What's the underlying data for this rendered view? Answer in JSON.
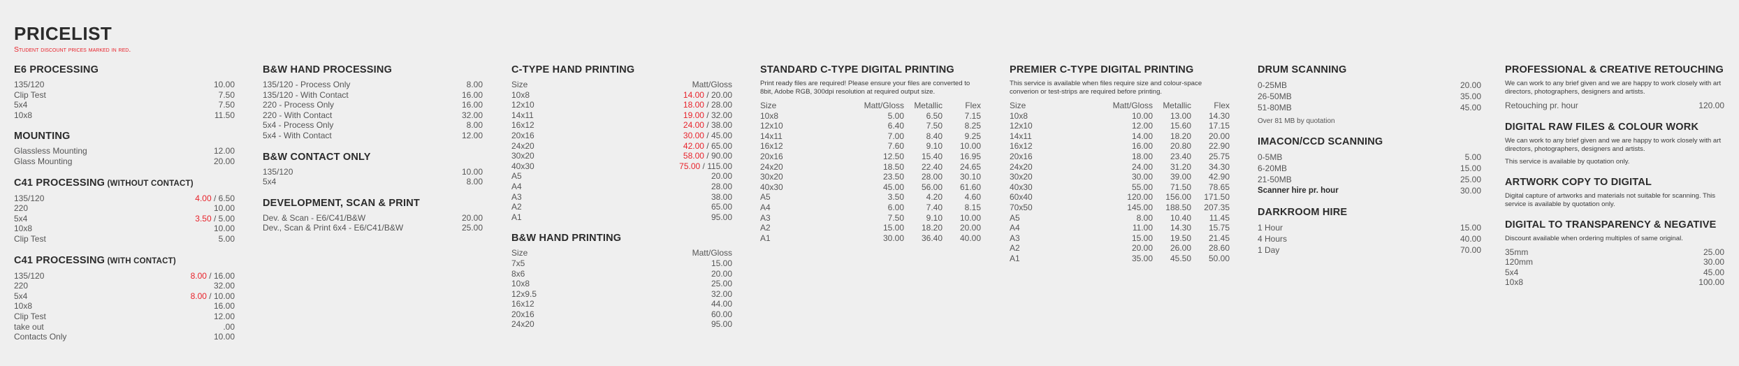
{
  "title": "PRICELIST",
  "subtitle": "Student discount prices marked in red.",
  "separator": " / ",
  "colors": {
    "background": "#efefef",
    "heading": "#2b2b2b",
    "text": "#555555",
    "student_price": "#e8232b"
  },
  "columns": [
    {
      "sections": [
        {
          "title": "E6 PROCESSING",
          "rows": [
            {
              "label": "135/120",
              "price": "10.00"
            },
            {
              "label": "Clip Test",
              "price": "7.50"
            },
            {
              "label": "5x4",
              "price": "7.50"
            },
            {
              "label": "10x8",
              "price": "11.50"
            }
          ]
        },
        {
          "title": "MOUNTING",
          "rows": [
            {
              "label": "Glassless Mounting",
              "price": "12.00"
            },
            {
              "label": "Glass Mounting",
              "price": "20.00"
            }
          ]
        },
        {
          "title": "C41 PROCESSING",
          "title_suffix": " (WITHOUT CONTACT)",
          "rows": [
            {
              "label": "135/120",
              "student": "4.00",
              "price": "6.50"
            },
            {
              "label": "220",
              "price": "10.00"
            },
            {
              "label": "5x4",
              "student": "3.50",
              "price": "5.00"
            },
            {
              "label": "10x8",
              "price": "10.00"
            },
            {
              "label": "Clip Test",
              "price": "5.00"
            }
          ]
        },
        {
          "title": "C41 PROCESSING",
          "title_suffix": " (WITH CONTACT)",
          "rows": [
            {
              "label": "135/120",
              "student": "8.00",
              "price": "16.00"
            },
            {
              "label": "220",
              "price": "32.00"
            },
            {
              "label": "5x4",
              "student": "8.00",
              "price": "10.00"
            },
            {
              "label": "10x8",
              "price": "16.00"
            },
            {
              "label": "Clip Test",
              "price": "12.00"
            },
            {
              "label": "take out",
              "price": ".00"
            },
            {
              "label": "Contacts Only",
              "price": "10.00"
            }
          ]
        }
      ]
    },
    {
      "sections": [
        {
          "title": "B&W HAND PROCESSING",
          "rows": [
            {
              "label": "135/120 - Process Only",
              "price": "8.00"
            },
            {
              "label": "135/120 - With Contact",
              "price": "16.00"
            },
            {
              "label": "220 - Process Only",
              "price": "16.00"
            },
            {
              "label": "220 - With Contact",
              "price": "32.00"
            },
            {
              "label": "5x4 - Process Only",
              "price": "8.00"
            },
            {
              "label": "5x4 - With Contact",
              "price": "12.00"
            }
          ]
        },
        {
          "title": "B&W CONTACT ONLY",
          "rows": [
            {
              "label": "135/120",
              "price": "10.00"
            },
            {
              "label": "5x4",
              "price": "8.00"
            }
          ]
        },
        {
          "title": "DEVELOPMENT, SCAN & PRINT",
          "rows": [
            {
              "label": "Dev. & Scan - E6/C41/B&W",
              "price": "20.00"
            },
            {
              "label": "Dev., Scan & Print 6x4 - E6/C41/B&W",
              "price": "25.00"
            }
          ]
        }
      ]
    },
    {
      "sections": [
        {
          "title": "C-TYPE HAND PRINTING",
          "headers": [
            "Size",
            "Matt/Gloss"
          ],
          "rows": [
            {
              "label": "10x8",
              "student": "14.00",
              "price": "20.00"
            },
            {
              "label": "12x10",
              "student": "18.00",
              "price": "28.00"
            },
            {
              "label": "14x11",
              "student": "19.00",
              "price": "32.00"
            },
            {
              "label": "16x12",
              "student": "24.00",
              "price": "38.00"
            },
            {
              "label": "20x16",
              "student": "30.00",
              "price": "45.00"
            },
            {
              "label": "24x20",
              "student": "42.00",
              "price": "65.00"
            },
            {
              "label": "30x20",
              "student": "58.00",
              "price": "90.00"
            },
            {
              "label": "40x30",
              "student": "75.00",
              "price": "115.00"
            },
            {
              "label": "A5",
              "price": "20.00"
            },
            {
              "label": "A4",
              "price": "28.00"
            },
            {
              "label": "A3",
              "price": "38.00"
            },
            {
              "label": "A2",
              "price": "65.00"
            },
            {
              "label": "A1",
              "price": "95.00"
            }
          ]
        },
        {
          "title": "B&W HAND PRINTING",
          "headers": [
            "Size",
            "Matt/Gloss"
          ],
          "rows": [
            {
              "label": "7x5",
              "price": "15.00"
            },
            {
              "label": "8x6",
              "price": "20.00"
            },
            {
              "label": "10x8",
              "price": "25.00"
            },
            {
              "label": "12x9.5",
              "price": "32.00"
            },
            {
              "label": "16x12",
              "price": "44.00"
            },
            {
              "label": "20x16",
              "price": "60.00"
            },
            {
              "label": "24x20",
              "price": "95.00"
            }
          ]
        }
      ]
    },
    {
      "sections": [
        {
          "title": "STANDARD C-TYPE DIGITAL PRINTING",
          "notes": [
            "Print ready files are required! Please ensure your files are converted to 8bit, Adobe RGB, 300dpi resolution at required output size."
          ],
          "headers": [
            "Size",
            "Matt/Gloss",
            "Metallic",
            "Flex"
          ],
          "rows": [
            {
              "label": "10x8",
              "values": [
                "5.00",
                "6.50",
                "7.15"
              ]
            },
            {
              "label": "12x10",
              "values": [
                "6.40",
                "7.50",
                "8.25"
              ]
            },
            {
              "label": "14x11",
              "values": [
                "7.00",
                "8.40",
                "9.25"
              ]
            },
            {
              "label": "16x12",
              "values": [
                "7.60",
                "9.10",
                "10.00"
              ]
            },
            {
              "label": "20x16",
              "values": [
                "12.50",
                "15.40",
                "16.95"
              ]
            },
            {
              "label": "24x20",
              "values": [
                "18.50",
                "22.40",
                "24.65"
              ]
            },
            {
              "label": "30x20",
              "values": [
                "23.50",
                "28.00",
                "30.10"
              ]
            },
            {
              "label": "40x30",
              "values": [
                "45.00",
                "56.00",
                "61.60"
              ]
            },
            {
              "label": "A5",
              "values": [
                "3.50",
                "4.20",
                "4.60"
              ]
            },
            {
              "label": "A4",
              "values": [
                "6.00",
                "7.40",
                "8.15"
              ]
            },
            {
              "label": "A3",
              "values": [
                "7.50",
                "9.10",
                "10.00"
              ]
            },
            {
              "label": "A2",
              "values": [
                "15.00",
                "18.20",
                "20.00"
              ]
            },
            {
              "label": "A1",
              "values": [
                "30.00",
                "36.40",
                "40.00"
              ]
            }
          ]
        }
      ]
    },
    {
      "sections": [
        {
          "title": "PREMIER C-TYPE DIGITAL PRINTING",
          "notes": [
            "This service is available when files require size and colour-space converion or test-strips are required before printing."
          ],
          "headers": [
            "Size",
            "Matt/Gloss",
            "Metallic",
            "Flex"
          ],
          "rows": [
            {
              "label": "10x8",
              "values": [
                "10.00",
                "13.00",
                "14.30"
              ]
            },
            {
              "label": "12x10",
              "values": [
                "12.00",
                "15.60",
                "17.15"
              ]
            },
            {
              "label": "14x11",
              "values": [
                "14.00",
                "18.20",
                "20.00"
              ]
            },
            {
              "label": "16x12",
              "values": [
                "16.00",
                "20.80",
                "22.90"
              ]
            },
            {
              "label": "20x16",
              "values": [
                "18.00",
                "23.40",
                "25.75"
              ]
            },
            {
              "label": "24x20",
              "values": [
                "24.00",
                "31.20",
                "34.30"
              ]
            },
            {
              "label": "30x20",
              "values": [
                "30.00",
                "39.00",
                "42.90"
              ]
            },
            {
              "label": "40x30",
              "values": [
                "55.00",
                "71.50",
                "78.65"
              ]
            },
            {
              "label": "60x40",
              "values": [
                "120.00",
                "156.00",
                "171.50"
              ]
            },
            {
              "label": "70x50",
              "values": [
                "145.00",
                "188.50",
                "207.35"
              ]
            },
            {
              "label": "A5",
              "values": [
                "8.00",
                "10.40",
                "11.45"
              ]
            },
            {
              "label": "A4",
              "values": [
                "11.00",
                "14.30",
                "15.75"
              ]
            },
            {
              "label": "A3",
              "values": [
                "15.00",
                "19.50",
                "21.45"
              ]
            },
            {
              "label": "A2",
              "values": [
                "20.00",
                "26.00",
                "28.60"
              ]
            },
            {
              "label": "A1",
              "values": [
                "35.00",
                "45.50",
                "50.00"
              ]
            }
          ]
        }
      ]
    },
    {
      "sections": [
        {
          "title": "DRUM SCANNING",
          "rows": [
            {
              "label": "0-25MB",
              "price": "20.00"
            },
            {
              "label": "26-50MB",
              "price": "35.00"
            },
            {
              "label": "51-80MB",
              "price": "45.00"
            }
          ],
          "footnote": "Over 81 MB by quotation"
        },
        {
          "title": "IMACON/CCD SCANNING",
          "rows": [
            {
              "label": "0-5MB",
              "price": "5.00"
            },
            {
              "label": "6-20MB",
              "price": "15.00"
            },
            {
              "label": "21-50MB",
              "price": "25.00"
            },
            {
              "label": "Scanner hire pr. hour",
              "price": "30.00",
              "bold": true
            }
          ]
        },
        {
          "title": "DARKROOM HIRE",
          "rows": [
            {
              "label": "1 Hour",
              "price": "15.00"
            },
            {
              "label": "4 Hours",
              "price": "40.00"
            },
            {
              "label": "1 Day",
              "price": "70.00"
            }
          ]
        }
      ]
    },
    {
      "sections": [
        {
          "title": "PROFESSIONAL & CREATIVE RETOUCHING",
          "notes": [
            "We can work to any brief given and we are happy to work closely with art directors, photographers, designers and artists."
          ],
          "rows": [
            {
              "label": "Retouching pr. hour",
              "price": "120.00"
            }
          ]
        },
        {
          "title": "DIGITAL RAW FILES & COLOUR WORK",
          "notes": [
            "We can work to any brief given and we are happy to work closely with art directors, photographers, designers and artists.",
            "This service is available by quotation only."
          ]
        },
        {
          "title": "ARTWORK COPY TO DIGITAL",
          "notes": [
            "Digital capture of artworks and materials not suitable for scanning. This service is available by quotation only."
          ]
        },
        {
          "title": "DIGITAL TO TRANSPARENCY & NEGATIVE",
          "notes": [
            "Discount available when ordering multiples of same original."
          ],
          "rows": [
            {
              "label": "35mm",
              "price": "25.00"
            },
            {
              "label": "120mm",
              "price": "30.00"
            },
            {
              "label": "5x4",
              "price": "45.00"
            },
            {
              "label": "10x8",
              "price": "100.00"
            }
          ]
        }
      ]
    }
  ]
}
